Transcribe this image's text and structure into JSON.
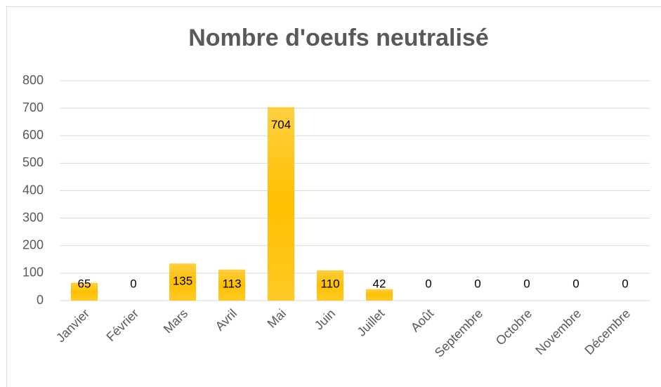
{
  "chart_data": {
    "type": "bar",
    "title": "Nombre d'oeufs neutralisé",
    "categories": [
      "Janvier",
      "Février",
      "Mars",
      "Avril",
      "Mai",
      "Juin",
      "Juillet",
      "Août",
      "Septembre",
      "Octobre",
      "Novembre",
      "Décembre"
    ],
    "values": [
      65,
      0,
      135,
      113,
      704,
      110,
      42,
      0,
      0,
      0,
      0,
      0
    ],
    "color": "#ffc000",
    "ylim": [
      0,
      800
    ],
    "yticks": [
      0,
      100,
      200,
      300,
      400,
      500,
      600,
      700,
      800
    ],
    "grid": true
  }
}
